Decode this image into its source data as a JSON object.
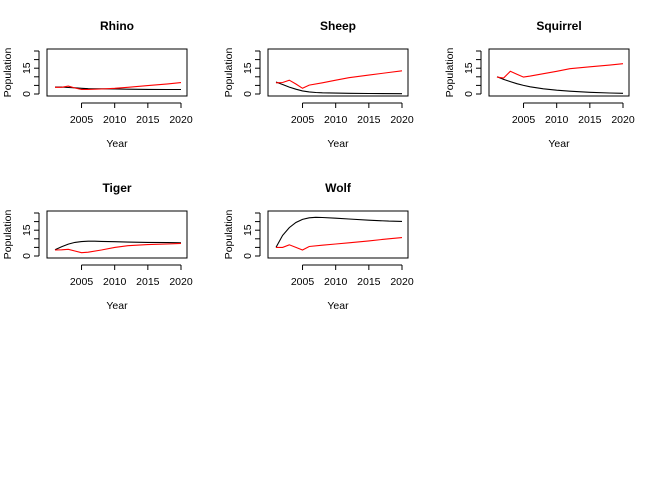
{
  "colors": {
    "black_series": "#000000",
    "red_series": "#ff0000"
  },
  "chart_data": [
    {
      "type": "line",
      "title": "Rhino",
      "xlabel": "Year",
      "ylabel": "Population",
      "xlim": [
        2001,
        2020
      ],
      "ylim": [
        0,
        25
      ],
      "xticks": [
        2005,
        2010,
        2015,
        2020
      ],
      "yticks": [
        0,
        15
      ],
      "series": [
        {
          "color": "#000000",
          "x": [
            2001,
            2002,
            2003,
            2004,
            2005,
            2006,
            2008,
            2010,
            2012,
            2015,
            2018,
            2020
          ],
          "values": [
            4.0,
            4.0,
            3.8,
            3.6,
            3.3,
            3.1,
            3.0,
            2.9,
            2.8,
            2.7,
            2.6,
            2.6
          ]
        },
        {
          "color": "#ff0000",
          "x": [
            2001,
            2002,
            2003,
            2004,
            2005,
            2006,
            2008,
            2010,
            2012,
            2015,
            2018,
            2020
          ],
          "values": [
            3.9,
            3.9,
            4.6,
            3.5,
            2.6,
            2.6,
            2.9,
            3.3,
            3.9,
            4.9,
            5.9,
            6.6
          ]
        }
      ]
    },
    {
      "type": "line",
      "title": "Sheep",
      "xlabel": "Year",
      "ylabel": "Population",
      "xlim": [
        2001,
        2020
      ],
      "ylim": [
        0,
        25
      ],
      "xticks": [
        2005,
        2010,
        2015,
        2020
      ],
      "yticks": [
        0,
        15
      ],
      "series": [
        {
          "color": "#000000",
          "x": [
            2001,
            2002,
            2003,
            2004,
            2005,
            2006,
            2007,
            2008,
            2010,
            2012,
            2015,
            2020
          ],
          "values": [
            7.0,
            5.5,
            4.0,
            2.8,
            1.8,
            1.2,
            0.9,
            0.7,
            0.5,
            0.4,
            0.3,
            0.2
          ]
        },
        {
          "color": "#ff0000",
          "x": [
            2001,
            2002,
            2003,
            2004,
            2005,
            2006,
            2008,
            2010,
            2012,
            2015,
            2018,
            2020
          ],
          "values": [
            6.5,
            6.7,
            8.0,
            5.8,
            3.3,
            5.2,
            6.5,
            8.0,
            9.5,
            11.0,
            12.5,
            13.5
          ]
        }
      ]
    },
    {
      "type": "line",
      "title": "Squirrel",
      "xlabel": "Year",
      "ylabel": "Population",
      "xlim": [
        2001,
        2020
      ],
      "ylim": [
        0,
        25
      ],
      "xticks": [
        2005,
        2010,
        2015,
        2020
      ],
      "yticks": [
        0,
        15
      ],
      "series": [
        {
          "color": "#000000",
          "x": [
            2001,
            2002,
            2003,
            2004,
            2005,
            2006,
            2008,
            2010,
            2012,
            2015,
            2018,
            2020
          ],
          "values": [
            10.0,
            8.5,
            7.2,
            6.0,
            5.0,
            4.2,
            3.0,
            2.2,
            1.6,
            1.0,
            0.6,
            0.4
          ]
        },
        {
          "color": "#ff0000",
          "x": [
            2001,
            2002,
            2003,
            2004,
            2005,
            2006,
            2008,
            2010,
            2012,
            2015,
            2018,
            2020
          ],
          "values": [
            9.8,
            9.3,
            13.2,
            11.5,
            9.8,
            10.4,
            11.8,
            13.2,
            14.7,
            15.8,
            16.8,
            17.6
          ]
        }
      ]
    },
    {
      "type": "line",
      "title": "Tiger",
      "xlabel": "Year",
      "ylabel": "Population",
      "xlim": [
        2001,
        2020
      ],
      "ylim": [
        0,
        25
      ],
      "xticks": [
        2005,
        2010,
        2015,
        2020
      ],
      "yticks": [
        0,
        15
      ],
      "series": [
        {
          "color": "#000000",
          "x": [
            2001,
            2002,
            2003,
            2004,
            2005,
            2006,
            2007,
            2008,
            2010,
            2012,
            2015,
            2018,
            2020
          ],
          "values": [
            3.6,
            5.4,
            6.9,
            7.9,
            8.4,
            8.6,
            8.6,
            8.5,
            8.3,
            8.1,
            7.9,
            7.8,
            7.7
          ]
        },
        {
          "color": "#ff0000",
          "x": [
            2001,
            2002,
            2003,
            2004,
            2005,
            2006,
            2008,
            2010,
            2012,
            2015,
            2018,
            2020
          ],
          "values": [
            3.5,
            3.6,
            3.9,
            2.9,
            1.9,
            2.2,
            3.5,
            5.0,
            6.0,
            6.6,
            7.0,
            7.3
          ]
        }
      ]
    },
    {
      "type": "line",
      "title": "Wolf",
      "xlabel": "Year",
      "ylabel": "Population",
      "xlim": [
        2001,
        2020
      ],
      "ylim": [
        0,
        25
      ],
      "xticks": [
        2005,
        2010,
        2015,
        2020
      ],
      "yticks": [
        0,
        15
      ],
      "series": [
        {
          "color": "#000000",
          "x": [
            2001,
            2002,
            2003,
            2004,
            2005,
            2006,
            2007,
            2008,
            2010,
            2012,
            2015,
            2018,
            2020
          ],
          "values": [
            5.0,
            12.0,
            16.5,
            19.5,
            21.3,
            22.2,
            22.5,
            22.4,
            22.0,
            21.5,
            20.8,
            20.3,
            20.1
          ]
        },
        {
          "color": "#ff0000",
          "x": [
            2001,
            2002,
            2003,
            2004,
            2005,
            2006,
            2008,
            2010,
            2012,
            2015,
            2018,
            2020
          ],
          "values": [
            5.0,
            5.0,
            6.5,
            5.0,
            3.5,
            5.5,
            6.3,
            7.0,
            7.7,
            8.8,
            10.0,
            10.7
          ]
        }
      ]
    }
  ]
}
